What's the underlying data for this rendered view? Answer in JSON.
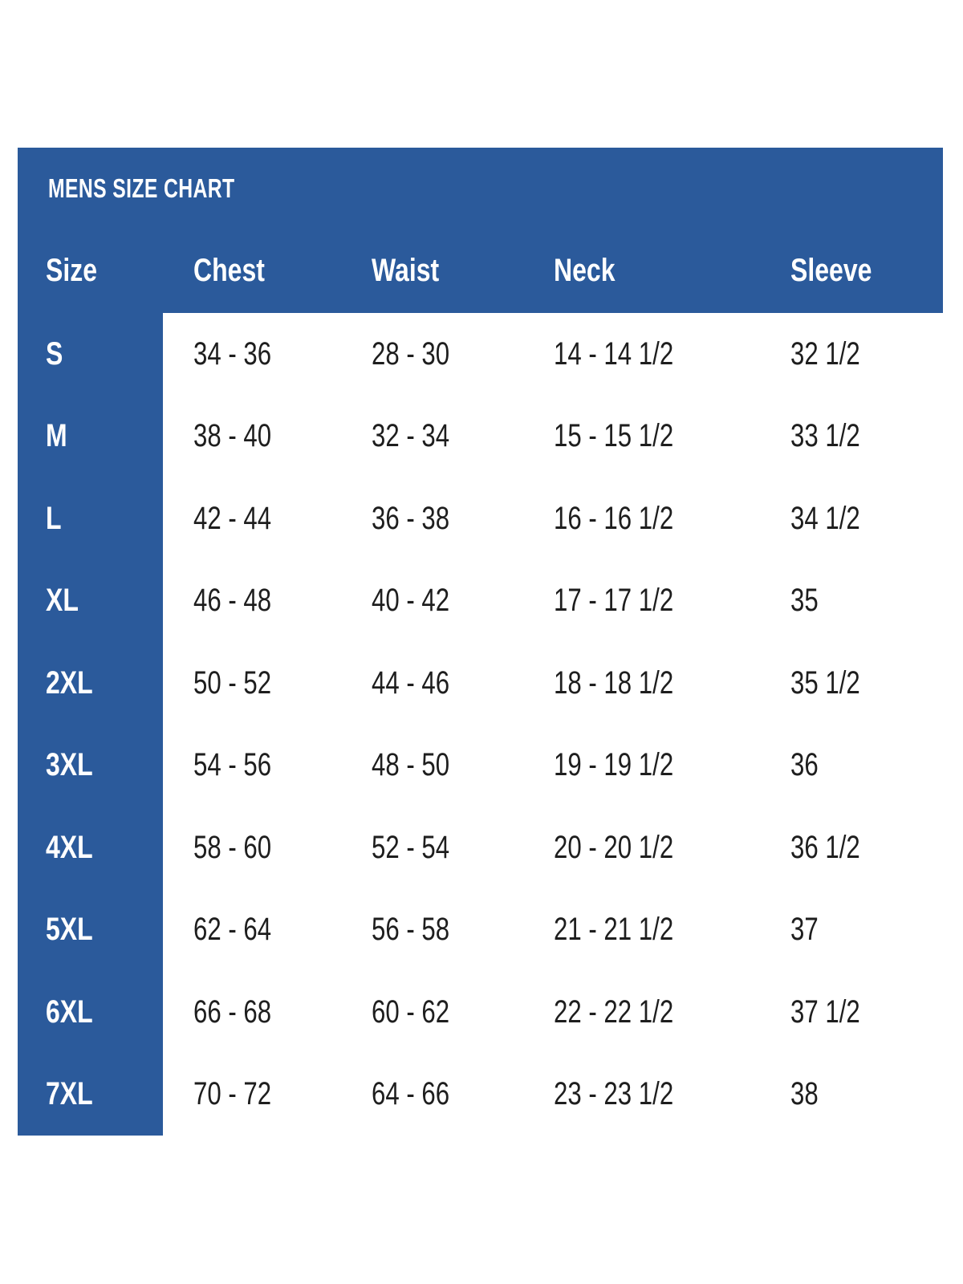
{
  "chart_data": {
    "type": "table",
    "title": "MENS SIZE CHART",
    "columns": [
      "Size",
      "Chest",
      "Waist",
      "Neck",
      "Sleeve"
    ],
    "rows": [
      [
        "S",
        "34 - 36",
        "28 - 30",
        "14 - 14 1/2",
        "32 1/2"
      ],
      [
        "M",
        "38 - 40",
        "32 - 34",
        "15 - 15 1/2",
        "33 1/2"
      ],
      [
        "L",
        "42 - 44",
        "36 - 38",
        "16 - 16 1/2",
        "34 1/2"
      ],
      [
        "XL",
        "46 - 48",
        "40 - 42",
        "17 - 17 1/2",
        "35"
      ],
      [
        "2XL",
        "50 - 52",
        "44 - 46",
        "18 - 18 1/2",
        "35 1/2"
      ],
      [
        "3XL",
        "54 - 56",
        "48 - 50",
        "19 - 19 1/2",
        "36"
      ],
      [
        "4XL",
        "58 - 60",
        "52 - 54",
        "20 - 20 1/2",
        "36 1/2"
      ],
      [
        "5XL",
        "62 - 64",
        "56 - 58",
        "21 - 21 1/2",
        "37"
      ],
      [
        "6XL",
        "66 - 68",
        "60 - 62",
        "22 - 22 1/2",
        "37 1/2"
      ],
      [
        "7XL",
        "70 - 72",
        "64 - 66",
        "23 - 23 1/2",
        "38"
      ]
    ]
  },
  "colors": {
    "primary_blue": "#2B5A9B",
    "header_text": "#FFFFFF",
    "data_text": "#1E1E1E",
    "page_background": "#FFFFFF"
  }
}
